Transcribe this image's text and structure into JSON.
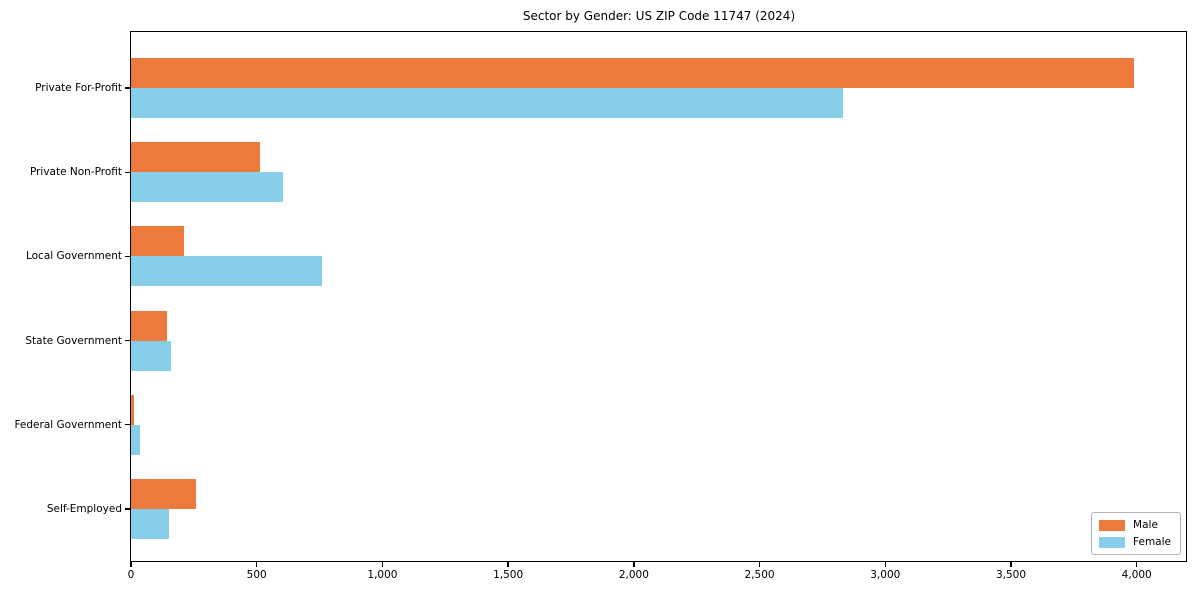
{
  "chart_data": {
    "type": "bar",
    "orientation": "horizontal",
    "title": "Sector by Gender: US ZIP Code 11747 (2024)",
    "xlabel": "",
    "ylabel": "",
    "categories": [
      "Private For-Profit",
      "Private Non-Profit",
      "Local Government",
      "State Government",
      "Federal Government",
      "Self-Employed"
    ],
    "series": [
      {
        "name": "Male",
        "color": "#EC7A3C",
        "values": [
          3990,
          515,
          210,
          145,
          12,
          260
        ]
      },
      {
        "name": "Female",
        "color": "#87CEEB",
        "values": [
          2830,
          605,
          760,
          160,
          35,
          150
        ]
      }
    ],
    "xlim": [
      0,
      4200
    ],
    "xticks": [
      0,
      500,
      1000,
      1500,
      2000,
      2500,
      3000,
      3500,
      4000
    ],
    "xtick_labels": [
      "0",
      "500",
      "1,000",
      "1,500",
      "2,000",
      "2,500",
      "3,000",
      "3,500",
      "4,000"
    ],
    "grid": false,
    "legend_position": "lower right"
  },
  "legend": {
    "items": [
      {
        "label": "Male",
        "color": "#EC7A3C"
      },
      {
        "label": "Female",
        "color": "#87CEEB"
      }
    ]
  }
}
